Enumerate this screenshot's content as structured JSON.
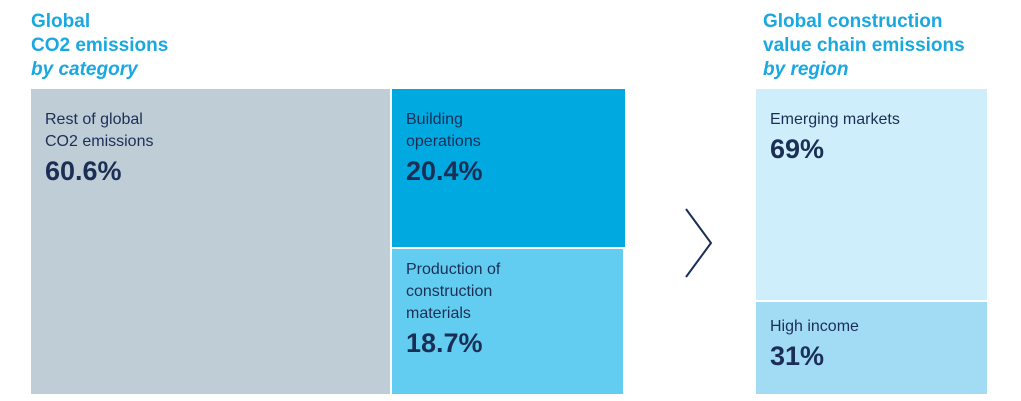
{
  "left_title": {
    "line1": "Global",
    "line2": "CO2 emissions",
    "line3": "by category"
  },
  "right_title": {
    "line1": "Global construction",
    "line2": "value chain emissions",
    "line3": "by region"
  },
  "colors": {
    "title": "#1aa8e0",
    "text": "#1b2f56",
    "rest": "#bfcdd7",
    "operations": "#00a9e0",
    "materials": "#62cdf0",
    "emerging": "#cdeefa",
    "high_income": "#a1dcf4",
    "arrow": "#1b2f56"
  },
  "chart_data": [
    {
      "type": "treemap",
      "title": "Global CO2 emissions by category",
      "unit": "%",
      "items": [
        {
          "label": "Rest of global\nCO2 emissions",
          "value": 60.6,
          "value_label": "60.6%"
        },
        {
          "label": "Building\noperations",
          "value": 20.4,
          "value_label": "20.4%"
        },
        {
          "label": "Production of\nconstruction\nmaterials",
          "value": 18.7,
          "value_label": "18.7%"
        }
      ]
    },
    {
      "type": "treemap",
      "title": "Global construction value chain emissions by region",
      "unit": "%",
      "items": [
        {
          "label": "Emerging markets",
          "value": 69,
          "value_label": "69%"
        },
        {
          "label": "High income",
          "value": 31,
          "value_label": "31%"
        }
      ]
    }
  ]
}
